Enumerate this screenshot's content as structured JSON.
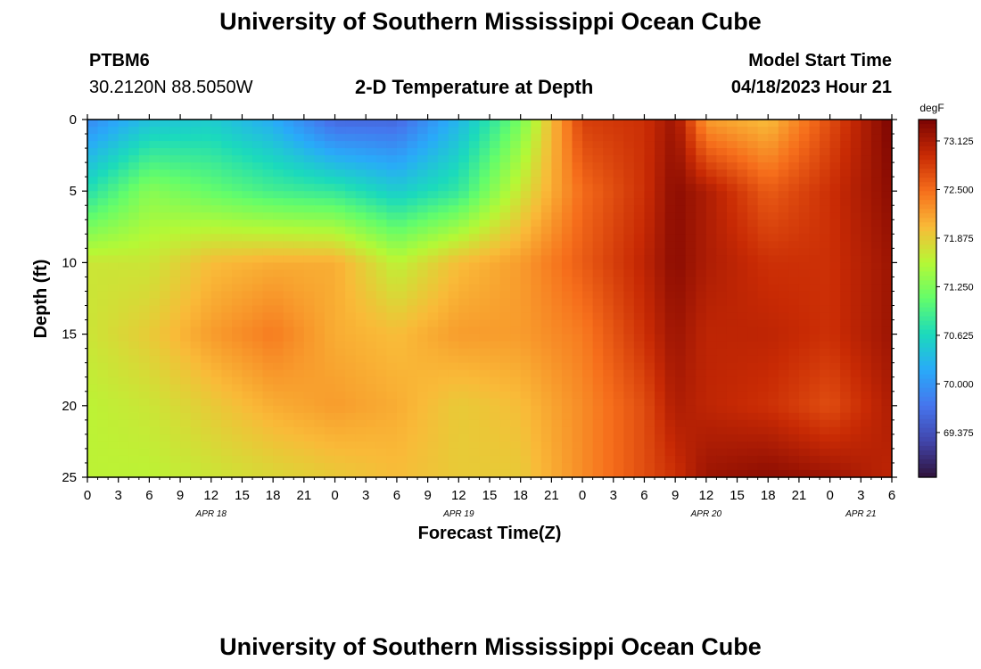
{
  "header": {
    "title": "University of Southern Mississippi Ocean Cube",
    "station": "PTBM6",
    "coordinates": "30.2120N  88.5050W",
    "subtitle": "2-D Temperature at Depth",
    "model_start_label": "Model Start Time",
    "model_start_value": "04/18/2023 Hour 21"
  },
  "footer": {
    "title": "University of Southern Mississippi Ocean Cube"
  },
  "chart_data": {
    "type": "heatmap",
    "xlabel": "Forecast Time(Z)",
    "ylabel": "Depth (ft)",
    "x_tick_labels": [
      "0",
      "3",
      "6",
      "9",
      "12",
      "15",
      "18",
      "21",
      "0",
      "3",
      "6",
      "9",
      "12",
      "15",
      "18",
      "21",
      "0",
      "3",
      "6",
      "9",
      "12",
      "15",
      "18",
      "21",
      "0",
      "3",
      "6"
    ],
    "date_labels": [
      {
        "label": "APR 18",
        "hour_index": 12
      },
      {
        "label": "APR 19",
        "hour_index": 36
      },
      {
        "label": "APR 20",
        "hour_index": 60
      },
      {
        "label": "APR 21",
        "hour_index": 75
      }
    ],
    "x_range_hours": [
      0,
      78
    ],
    "y_range_ft": [
      0,
      25
    ],
    "y_ticks": [
      0,
      5,
      10,
      15,
      20,
      25
    ],
    "colorbar": {
      "unit": "degF",
      "min": 68.8,
      "max": 73.4,
      "tick_labels": [
        "73.125",
        "72.500",
        "71.875",
        "71.250",
        "70.625",
        "70.000",
        "69.375"
      ],
      "tick_values": [
        73.125,
        72.5,
        71.875,
        71.25,
        70.625,
        70.0,
        69.375
      ]
    },
    "depth_levels_ft": [
      0,
      5,
      10,
      15,
      20,
      25
    ],
    "key_hours": [
      0,
      6,
      12,
      18,
      24,
      30,
      36,
      42,
      48,
      54,
      57,
      60,
      66,
      72,
      78
    ],
    "grid_values_degF": [
      [
        69.9,
        70.4,
        70.5,
        70.2,
        69.6,
        69.6,
        70.3,
        71.2,
        72.8,
        72.9,
        73.2,
        72.2,
        72.0,
        72.7,
        73.4
      ],
      [
        70.7,
        71.3,
        71.1,
        70.9,
        70.8,
        70.5,
        70.8,
        71.7,
        72.5,
        72.9,
        73.3,
        73.1,
        72.6,
        72.9,
        73.3
      ],
      [
        71.7,
        71.7,
        72.0,
        72.1,
        72.1,
        71.6,
        72.0,
        72.2,
        72.6,
        73.0,
        73.3,
        73.1,
        72.9,
        72.9,
        73.2
      ],
      [
        71.7,
        71.9,
        72.2,
        72.4,
        72.1,
        72.0,
        72.2,
        72.2,
        72.4,
        72.9,
        73.2,
        73.0,
        73.0,
        72.9,
        73.2
      ],
      [
        71.6,
        71.7,
        71.9,
        72.1,
        72.2,
        72.1,
        71.9,
        72.0,
        72.3,
        72.7,
        73.1,
        73.0,
        72.9,
        72.7,
        73.1
      ],
      [
        71.6,
        71.6,
        71.7,
        71.8,
        71.9,
        72.0,
        71.9,
        71.9,
        72.3,
        72.7,
        72.9,
        73.2,
        73.3,
        73.2,
        73.0
      ]
    ]
  }
}
